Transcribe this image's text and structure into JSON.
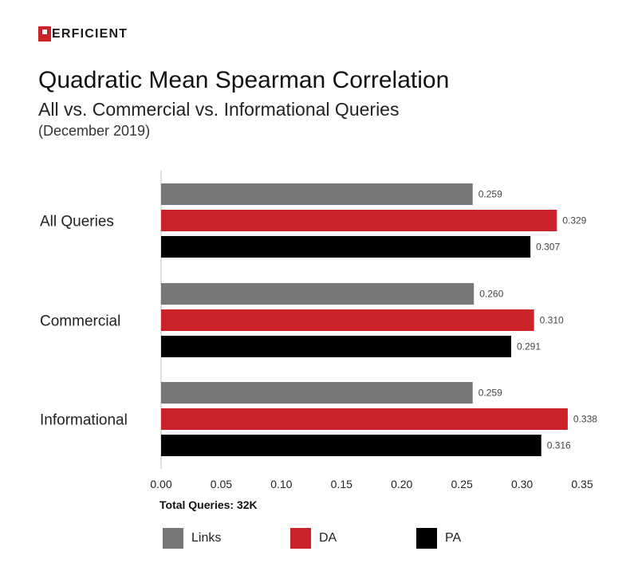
{
  "brand": {
    "logo_text": "ERFICIENT",
    "logo_mark": "perficient-p-logo"
  },
  "chart_data": {
    "type": "bar",
    "orientation": "horizontal",
    "title": "Quadratic Mean Spearman Correlation",
    "subtitle": "All vs. Commercial vs. Informational Queries",
    "date_note": "(December 2019)",
    "categories": [
      "All Queries",
      "Commercial",
      "Informational"
    ],
    "series": [
      {
        "name": "Links",
        "color": "#77777a",
        "values": [
          0.259,
          0.26,
          0.259
        ],
        "labels": [
          "0.259",
          "0.260",
          "0.259"
        ]
      },
      {
        "name": "DA",
        "color": "#cc2229",
        "values": [
          0.329,
          0.31,
          0.338
        ],
        "labels": [
          "0.329",
          "0.310",
          "0.338"
        ]
      },
      {
        "name": "PA",
        "color": "#000000",
        "values": [
          0.307,
          0.291,
          0.316
        ],
        "labels": [
          "0.307",
          "0.291",
          "0.316"
        ]
      }
    ],
    "xlim": [
      0,
      0.35
    ],
    "xticks": [
      "0.00",
      "0.05",
      "0.10",
      "0.15",
      "0.20",
      "0.25",
      "0.30",
      "0.35"
    ],
    "grid": false,
    "legend_position": "bottom",
    "footnote": "Total Queries: 32K"
  }
}
